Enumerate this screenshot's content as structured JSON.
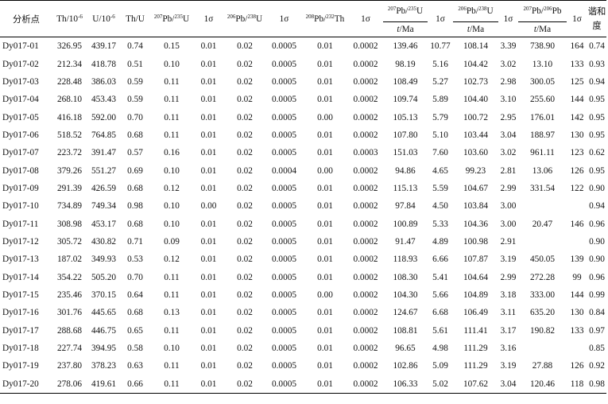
{
  "headers": {
    "id": "分析点",
    "th_base": "Th/10",
    "th_exp": "-6",
    "u_base": "U/10",
    "u_exp": "-6",
    "thu": "Th/U",
    "pb207u235_iso": "207",
    "pb207u235_rest1": "Pb/",
    "pb207u235_iso2": "235",
    "pb207u235_rest2": "U",
    "sigma": "1σ",
    "pb206u238_iso": "206",
    "pb206u238_rest1": "Pb/",
    "pb206u238_iso2": "238",
    "pb206u238_rest2": "U",
    "pb208th232_iso": "208",
    "pb208th232_rest1": "Pb/",
    "pb208th232_iso2": "232",
    "pb208th232_rest2": "Th",
    "pb207pb206_iso": "207",
    "pb207pb206_rest1": "Pb/",
    "pb207pb206_iso2": "206",
    "pb207pb206_rest2": "Pb",
    "age_t": "t",
    "age_unit": "/Ma",
    "concordance": "谐和度"
  },
  "rows": [
    [
      "Dy017-01",
      "326.95",
      "439.17",
      "0.74",
      "0.15",
      "0.01",
      "0.02",
      "0.0005",
      "0.01",
      "0.0002",
      "139.46",
      "10.77",
      "108.14",
      "3.39",
      "738.90",
      "164",
      "0.74"
    ],
    [
      "Dy017-02",
      "212.34",
      "418.78",
      "0.51",
      "0.10",
      "0.01",
      "0.02",
      "0.0005",
      "0.01",
      "0.0002",
      "98.19",
      "5.16",
      "104.42",
      "3.02",
      "13.10",
      "133",
      "0.93"
    ],
    [
      "Dy017-03",
      "228.48",
      "386.03",
      "0.59",
      "0.11",
      "0.01",
      "0.02",
      "0.0005",
      "0.01",
      "0.0002",
      "108.49",
      "5.27",
      "102.73",
      "2.98",
      "300.05",
      "125",
      "0.94"
    ],
    [
      "Dy017-04",
      "268.10",
      "453.43",
      "0.59",
      "0.11",
      "0.01",
      "0.02",
      "0.0005",
      "0.01",
      "0.0002",
      "109.74",
      "5.89",
      "104.40",
      "3.10",
      "255.60",
      "144",
      "0.95"
    ],
    [
      "Dy017-05",
      "416.18",
      "592.00",
      "0.70",
      "0.11",
      "0.01",
      "0.02",
      "0.0005",
      "0.00",
      "0.0002",
      "105.13",
      "5.79",
      "100.72",
      "2.95",
      "176.01",
      "142",
      "0.95"
    ],
    [
      "Dy017-06",
      "518.52",
      "764.85",
      "0.68",
      "0.11",
      "0.01",
      "0.02",
      "0.0005",
      "0.01",
      "0.0002",
      "107.80",
      "5.10",
      "103.44",
      "3.04",
      "188.97",
      "130",
      "0.95"
    ],
    [
      "Dy017-07",
      "223.72",
      "391.47",
      "0.57",
      "0.16",
      "0.01",
      "0.02",
      "0.0005",
      "0.01",
      "0.0003",
      "151.03",
      "7.60",
      "103.60",
      "3.02",
      "961.11",
      "123",
      "0.62"
    ],
    [
      "Dy017-08",
      "379.26",
      "551.27",
      "0.69",
      "0.10",
      "0.01",
      "0.02",
      "0.0004",
      "0.00",
      "0.0002",
      "94.86",
      "4.65",
      "99.23",
      "2.81",
      "13.06",
      "126",
      "0.95"
    ],
    [
      "Dy017-09",
      "291.39",
      "426.59",
      "0.68",
      "0.12",
      "0.01",
      "0.02",
      "0.0005",
      "0.01",
      "0.0002",
      "115.13",
      "5.59",
      "104.67",
      "2.99",
      "331.54",
      "122",
      "0.90"
    ],
    [
      "Dy017-10",
      "734.89",
      "749.34",
      "0.98",
      "0.10",
      "0.00",
      "0.02",
      "0.0005",
      "0.01",
      "0.0002",
      "97.84",
      "4.50",
      "103.84",
      "3.00",
      "",
      "",
      "0.94"
    ],
    [
      "Dy017-11",
      "308.98",
      "453.17",
      "0.68",
      "0.10",
      "0.01",
      "0.02",
      "0.0005",
      "0.01",
      "0.0002",
      "100.89",
      "5.33",
      "104.36",
      "3.00",
      "20.47",
      "146",
      "0.96"
    ],
    [
      "Dy017-12",
      "305.72",
      "430.82",
      "0.71",
      "0.09",
      "0.01",
      "0.02",
      "0.0005",
      "0.01",
      "0.0002",
      "91.47",
      "4.89",
      "100.98",
      "2.91",
      "",
      "",
      "0.90"
    ],
    [
      "Dy017-13",
      "187.02",
      "349.93",
      "0.53",
      "0.12",
      "0.01",
      "0.02",
      "0.0005",
      "0.01",
      "0.0002",
      "118.93",
      "6.66",
      "107.87",
      "3.19",
      "450.05",
      "139",
      "0.90"
    ],
    [
      "Dy017-14",
      "354.22",
      "505.20",
      "0.70",
      "0.11",
      "0.01",
      "0.02",
      "0.0005",
      "0.01",
      "0.0002",
      "108.30",
      "5.41",
      "104.64",
      "2.99",
      "272.28",
      "99",
      "0.96"
    ],
    [
      "Dy017-15",
      "235.46",
      "370.15",
      "0.64",
      "0.11",
      "0.01",
      "0.02",
      "0.0005",
      "0.00",
      "0.0002",
      "104.30",
      "5.66",
      "104.89",
      "3.18",
      "333.00",
      "144",
      "0.99"
    ],
    [
      "Dy017-16",
      "301.76",
      "445.65",
      "0.68",
      "0.13",
      "0.01",
      "0.02",
      "0.0005",
      "0.01",
      "0.0002",
      "124.67",
      "6.68",
      "106.49",
      "3.11",
      "635.20",
      "130",
      "0.84"
    ],
    [
      "Dy017-17",
      "288.68",
      "446.75",
      "0.65",
      "0.11",
      "0.01",
      "0.02",
      "0.0005",
      "0.01",
      "0.0002",
      "108.81",
      "5.61",
      "111.41",
      "3.17",
      "190.82",
      "133",
      "0.97"
    ],
    [
      "Dy017-18",
      "227.74",
      "394.95",
      "0.58",
      "0.10",
      "0.01",
      "0.02",
      "0.0005",
      "0.01",
      "0.0002",
      "96.65",
      "4.98",
      "111.29",
      "3.16",
      "",
      "",
      "0.85"
    ],
    [
      "Dy017-19",
      "237.80",
      "378.23",
      "0.63",
      "0.11",
      "0.01",
      "0.02",
      "0.0005",
      "0.01",
      "0.0002",
      "102.86",
      "5.09",
      "111.29",
      "3.19",
      "27.88",
      "126",
      "0.92"
    ],
    [
      "Dy017-20",
      "278.06",
      "419.61",
      "0.66",
      "0.11",
      "0.01",
      "0.02",
      "0.0005",
      "0.01",
      "0.0002",
      "106.33",
      "5.02",
      "107.62",
      "3.04",
      "120.46",
      "118",
      "0.98"
    ]
  ]
}
